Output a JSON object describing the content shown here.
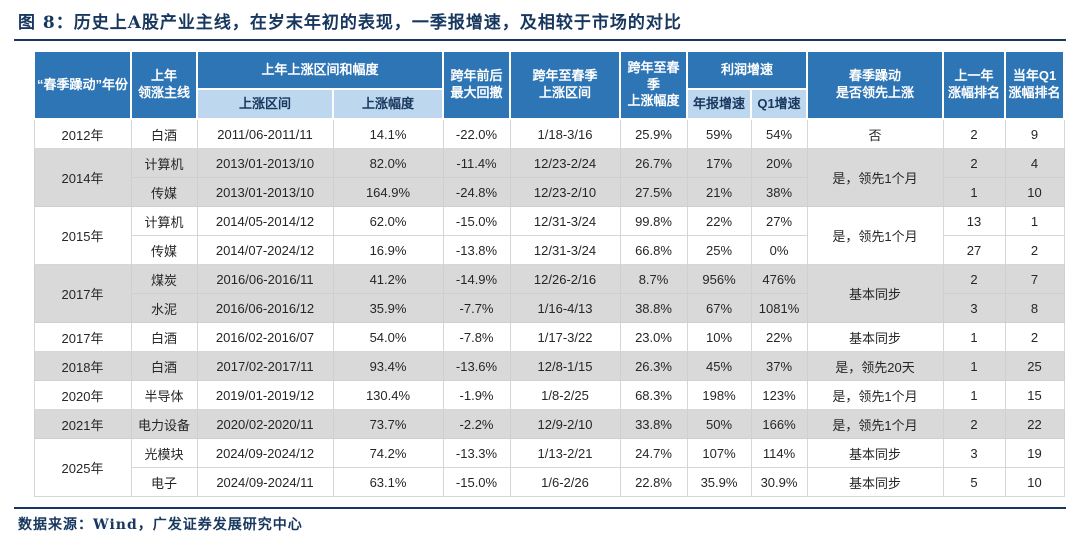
{
  "title": "图 8：历史上A股产业主线，在岁末年初的表现，一季报增速，及相较于市场的对比",
  "source": "数据来源：Wind，广发证券发展研究中心",
  "palette": {
    "header_blue": "#2e75b6",
    "subheader_blue": "#bdd7ee",
    "stripe_gray": "#d9d9d9",
    "title_navy": "#17375e"
  },
  "table": {
    "headers": {
      "year": "“春季躁动”年份",
      "leader_l1": "上年",
      "leader_l2": "领涨主线",
      "prev_group": "上年上涨区间和幅度",
      "range": "上涨区间",
      "gain": "上涨幅度",
      "drawdown_l1": "跨年前后",
      "drawdown_l2": "最大回撤",
      "spring_range_l1": "跨年至春季",
      "spring_range_l2": "上涨区间",
      "spring_gain_l1": "跨年至春季",
      "spring_gain_l2": "上涨幅度",
      "profit_group": "利润增速",
      "annual_growth": "年报增速",
      "q1_growth": "Q1增速",
      "lead_l1": "春季躁动",
      "lead_l2": "是否领先上涨",
      "prev_rank_l1": "上一年",
      "prev_rank_l2": "涨幅排名",
      "q1_rank_l1": "当年Q1",
      "q1_rank_l2": "涨幅排名"
    },
    "rows": [
      {
        "shade": false,
        "cells": [
          {
            "t": "2012年"
          },
          {
            "t": "白酒"
          },
          {
            "t": "2011/06-2011/11"
          },
          {
            "t": "14.1%"
          },
          {
            "t": "-22.0%"
          },
          {
            "t": "1/18-3/16"
          },
          {
            "t": "25.9%"
          },
          {
            "t": "59%"
          },
          {
            "t": "54%"
          },
          {
            "t": "否"
          },
          {
            "t": "2"
          },
          {
            "t": "9"
          }
        ]
      },
      {
        "shade": true,
        "cells": [
          {
            "t": "2014年",
            "rs": 2
          },
          {
            "t": "计算机"
          },
          {
            "t": "2013/01-2013/10"
          },
          {
            "t": "82.0%"
          },
          {
            "t": "-11.4%"
          },
          {
            "t": "12/23-2/24"
          },
          {
            "t": "26.7%"
          },
          {
            "t": "17%"
          },
          {
            "t": "20%"
          },
          {
            "t": "是，领先1个月",
            "rs": 2
          },
          {
            "t": "2"
          },
          {
            "t": "4"
          }
        ]
      },
      {
        "shade": true,
        "cells": [
          {
            "t": "传媒"
          },
          {
            "t": "2013/01-2013/10"
          },
          {
            "t": "164.9%"
          },
          {
            "t": "-24.8%"
          },
          {
            "t": "12/23-2/10"
          },
          {
            "t": "27.5%"
          },
          {
            "t": "21%"
          },
          {
            "t": "38%"
          },
          {
            "t": "1"
          },
          {
            "t": "10"
          }
        ]
      },
      {
        "shade": false,
        "cells": [
          {
            "t": "2015年",
            "rs": 2
          },
          {
            "t": "计算机"
          },
          {
            "t": "2014/05-2014/12"
          },
          {
            "t": "62.0%"
          },
          {
            "t": "-15.0%"
          },
          {
            "t": "12/31-3/24"
          },
          {
            "t": "99.8%"
          },
          {
            "t": "22%"
          },
          {
            "t": "27%"
          },
          {
            "t": "是，领先1个月",
            "rs": 2
          },
          {
            "t": "13"
          },
          {
            "t": "1"
          }
        ]
      },
      {
        "shade": false,
        "cells": [
          {
            "t": "传媒"
          },
          {
            "t": "2014/07-2024/12"
          },
          {
            "t": "16.9%"
          },
          {
            "t": "-13.8%"
          },
          {
            "t": "12/31-3/24"
          },
          {
            "t": "66.8%"
          },
          {
            "t": "25%"
          },
          {
            "t": "0%"
          },
          {
            "t": "27"
          },
          {
            "t": "2"
          }
        ]
      },
      {
        "shade": true,
        "cells": [
          {
            "t": "2017年",
            "rs": 2
          },
          {
            "t": "煤炭"
          },
          {
            "t": "2016/06-2016/11"
          },
          {
            "t": "41.2%"
          },
          {
            "t": "-14.9%"
          },
          {
            "t": "12/26-2/16"
          },
          {
            "t": "8.7%"
          },
          {
            "t": "956%"
          },
          {
            "t": "476%"
          },
          {
            "t": "基本同步",
            "rs": 2
          },
          {
            "t": "2"
          },
          {
            "t": "7"
          }
        ]
      },
      {
        "shade": true,
        "cells": [
          {
            "t": "水泥"
          },
          {
            "t": "2016/06-2016/12"
          },
          {
            "t": "35.9%"
          },
          {
            "t": "-7.7%"
          },
          {
            "t": "1/16-4/13"
          },
          {
            "t": "38.8%"
          },
          {
            "t": "67%"
          },
          {
            "t": "1081%"
          },
          {
            "t": "3"
          },
          {
            "t": "8"
          }
        ]
      },
      {
        "shade": false,
        "cells": [
          {
            "t": "2017年"
          },
          {
            "t": "白酒"
          },
          {
            "t": "2016/02-2016/07"
          },
          {
            "t": "54.0%"
          },
          {
            "t": "-7.8%"
          },
          {
            "t": "1/17-3/22"
          },
          {
            "t": "23.0%"
          },
          {
            "t": "10%"
          },
          {
            "t": "22%"
          },
          {
            "t": "基本同步"
          },
          {
            "t": "1"
          },
          {
            "t": "2"
          }
        ]
      },
      {
        "shade": true,
        "cells": [
          {
            "t": "2018年"
          },
          {
            "t": "白酒"
          },
          {
            "t": "2017/02-2017/11"
          },
          {
            "t": "93.4%"
          },
          {
            "t": "-13.6%"
          },
          {
            "t": "12/8-1/15"
          },
          {
            "t": "26.3%"
          },
          {
            "t": "45%"
          },
          {
            "t": "37%"
          },
          {
            "t": "是，领先20天"
          },
          {
            "t": "1"
          },
          {
            "t": "25"
          }
        ]
      },
      {
        "shade": false,
        "cells": [
          {
            "t": "2020年"
          },
          {
            "t": "半导体"
          },
          {
            "t": "2019/01-2019/12"
          },
          {
            "t": "130.4%"
          },
          {
            "t": "-1.9%"
          },
          {
            "t": "1/8-2/25"
          },
          {
            "t": "68.3%"
          },
          {
            "t": "198%"
          },
          {
            "t": "123%"
          },
          {
            "t": "是，领先1个月"
          },
          {
            "t": "1"
          },
          {
            "t": "15"
          }
        ]
      },
      {
        "shade": true,
        "cells": [
          {
            "t": "2021年"
          },
          {
            "t": "电力设备"
          },
          {
            "t": "2020/02-2020/11"
          },
          {
            "t": "73.7%"
          },
          {
            "t": "-2.2%"
          },
          {
            "t": "12/9-2/10"
          },
          {
            "t": "33.8%"
          },
          {
            "t": "50%"
          },
          {
            "t": "166%"
          },
          {
            "t": "是，领先1个月"
          },
          {
            "t": "2"
          },
          {
            "t": "22"
          }
        ]
      },
      {
        "shade": false,
        "cells": [
          {
            "t": "2025年",
            "rs": 2
          },
          {
            "t": "光模块"
          },
          {
            "t": "2024/09-2024/12"
          },
          {
            "t": "74.2%"
          },
          {
            "t": "-13.3%"
          },
          {
            "t": "1/13-2/21"
          },
          {
            "t": "24.7%"
          },
          {
            "t": "107%"
          },
          {
            "t": "114%"
          },
          {
            "t": "基本同步"
          },
          {
            "t": "3"
          },
          {
            "t": "19"
          }
        ]
      },
      {
        "shade": false,
        "cells": [
          {
            "t": "电子"
          },
          {
            "t": "2024/09-2024/11"
          },
          {
            "t": "63.1%"
          },
          {
            "t": "-15.0%"
          },
          {
            "t": "1/6-2/26"
          },
          {
            "t": "22.8%"
          },
          {
            "t": "35.9%"
          },
          {
            "t": "30.9%"
          },
          {
            "t": "基本同步"
          },
          {
            "t": "5"
          },
          {
            "t": "10"
          }
        ]
      }
    ]
  }
}
